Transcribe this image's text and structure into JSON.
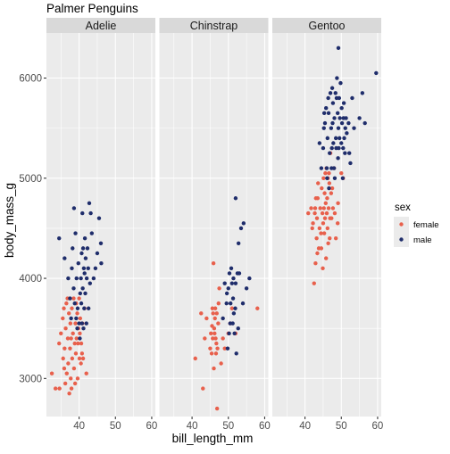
{
  "chart_data": {
    "type": "scatter",
    "title": "Palmer Penguins",
    "xlabel": "bill_length_mm",
    "ylabel": "body_mass_g",
    "xlim": [
      31,
      61
    ],
    "ylim": [
      2620,
      6450
    ],
    "x_ticks": [
      40,
      50,
      60
    ],
    "y_ticks": [
      3000,
      4000,
      5000,
      6000
    ],
    "legend": {
      "title": "sex",
      "position": "right",
      "entries": [
        {
          "name": "female",
          "color": "#E8604C"
        },
        {
          "name": "male",
          "color": "#1F2D6B"
        }
      ]
    },
    "facets": [
      {
        "name": "Adelie",
        "points": {
          "female": [
            [
              32.5,
              3050
            ],
            [
              33.5,
              2900
            ],
            [
              34.5,
              3350
            ],
            [
              34.6,
              2900
            ],
            [
              35,
              3450
            ],
            [
              35.5,
              3600
            ],
            [
              35.6,
              3200
            ],
            [
              35.8,
              3700
            ],
            [
              35.9,
              3100
            ],
            [
              36,
              3300
            ],
            [
              36.2,
              2950
            ],
            [
              36.3,
              3500
            ],
            [
              36.5,
              3750
            ],
            [
              36.6,
              3050
            ],
            [
              36.8,
              3800
            ],
            [
              36.9,
              3400
            ],
            [
              37,
              3150
            ],
            [
              37.2,
              3650
            ],
            [
              37.3,
              2850
            ],
            [
              37.5,
              3300
            ],
            [
              37.6,
              3550
            ],
            [
              37.7,
              3000
            ],
            [
              37.8,
              3400
            ],
            [
              37.9,
              2900
            ],
            [
              38,
              3700
            ],
            [
              38.1,
              3200
            ],
            [
              38.3,
              3450
            ],
            [
              38.5,
              3800
            ],
            [
              38.6,
              3100
            ],
            [
              38.8,
              3350
            ],
            [
              38.9,
              2950
            ],
            [
              39,
              3550
            ],
            [
              39.1,
              3250
            ],
            [
              39.2,
              3750
            ],
            [
              39.3,
              3400
            ],
            [
              39.5,
              3650
            ],
            [
              39.6,
              3000
            ],
            [
              39.7,
              3350
            ],
            [
              39.8,
              3500
            ],
            [
              40,
              3800
            ],
            [
              40.1,
              3200
            ],
            [
              40.2,
              3450
            ],
            [
              40.3,
              3600
            ],
            [
              40.5,
              3150
            ],
            [
              40.6,
              3350
            ],
            [
              40.8,
              3250
            ],
            [
              40.9,
              3550
            ],
            [
              41.1,
              3200
            ],
            [
              41.5,
              3700
            ],
            [
              42,
              3050
            ]
          ],
          "male": [
            [
              34.5,
              4400
            ],
            [
              36,
              4200
            ],
            [
              37,
              4000
            ],
            [
              37.5,
              3800
            ],
            [
              37.8,
              3600
            ],
            [
              38,
              4100
            ],
            [
              38.2,
              4300
            ],
            [
              38.5,
              3900
            ],
            [
              38.6,
              4700
            ],
            [
              38.8,
              3750
            ],
            [
              39,
              4450
            ],
            [
              39.2,
              3600
            ],
            [
              39.3,
              4000
            ],
            [
              39.5,
              3500
            ],
            [
              39.6,
              3700
            ],
            [
              39.8,
              4150
            ],
            [
              40,
              3550
            ],
            [
              40.2,
              3400
            ],
            [
              40.3,
              3850
            ],
            [
              40.5,
              4000
            ],
            [
              40.6,
              3750
            ],
            [
              40.7,
              4250
            ],
            [
              40.8,
              3550
            ],
            [
              40.9,
              4650
            ],
            [
              41,
              3900
            ],
            [
              41.1,
              4300
            ],
            [
              41.2,
              3500
            ],
            [
              41.3,
              4100
            ],
            [
              41.4,
              3700
            ],
            [
              41.5,
              4050
            ],
            [
              41.6,
              4400
            ],
            [
              41.7,
              3850
            ],
            [
              41.8,
              4200
            ],
            [
              42,
              3550
            ],
            [
              42.1,
              4000
            ],
            [
              42.3,
              4300
            ],
            [
              42.5,
              4100
            ],
            [
              42.6,
              3700
            ],
            [
              42.8,
              4750
            ],
            [
              43,
              3950
            ],
            [
              43.2,
              4650
            ],
            [
              43.5,
              4450
            ],
            [
              44,
              4000
            ],
            [
              44.5,
              4100
            ],
            [
              45,
              4250
            ],
            [
              45.5,
              4600
            ],
            [
              46,
              4350
            ],
            [
              46.1,
              4150
            ]
          ]
        }
      },
      {
        "name": "Chinstrap",
        "points": {
          "female": [
            [
              40.9,
              3200
            ],
            [
              42.5,
              3650
            ],
            [
              43,
              2900
            ],
            [
              43.5,
              3400
            ],
            [
              44,
              3600
            ],
            [
              45,
              3300
            ],
            [
              45.2,
              3450
            ],
            [
              45.4,
              3250
            ],
            [
              45.5,
              3525
            ],
            [
              45.6,
              3700
            ],
            [
              45.7,
              3400
            ],
            [
              45.8,
              3650
            ],
            [
              45.9,
              4150
            ],
            [
              46,
              3100
            ],
            [
              46.1,
              3500
            ],
            [
              46.2,
              3450
            ],
            [
              46.3,
              3600
            ],
            [
              46.4,
              3700
            ],
            [
              46.5,
              3400
            ],
            [
              46.6,
              3250
            ],
            [
              46.7,
              3350
            ],
            [
              46.8,
              3650
            ],
            [
              46.9,
              2700
            ],
            [
              47,
              3300
            ],
            [
              47.2,
              3550
            ],
            [
              47.3,
              3750
            ],
            [
              47.5,
              3900
            ],
            [
              48,
              3150
            ],
            [
              48.5,
              3400
            ],
            [
              49,
              3300
            ],
            [
              50,
              3450
            ],
            [
              50.5,
              3550
            ],
            [
              51,
              3700
            ],
            [
              52,
              3450
            ],
            [
              58,
              3700
            ]
          ],
          "male": [
            [
              48.5,
              3600
            ],
            [
              49,
              3950
            ],
            [
              49.5,
              3750
            ],
            [
              49.6,
              3850
            ],
            [
              49.8,
              3300
            ],
            [
              50,
              3900
            ],
            [
              50.2,
              3450
            ],
            [
              50.3,
              4050
            ],
            [
              50.5,
              3550
            ],
            [
              50.6,
              3750
            ],
            [
              50.8,
              4100
            ],
            [
              51,
              3950
            ],
            [
              51.2,
              3550
            ],
            [
              51.3,
              3800
            ],
            [
              51.4,
              4000
            ],
            [
              51.5,
              3650
            ],
            [
              51.7,
              3450
            ],
            [
              51.9,
              3700
            ],
            [
              52,
              3950
            ],
            [
              52.2,
              3250
            ],
            [
              52.5,
              4050
            ],
            [
              52.7,
              3500
            ],
            [
              52.8,
              4350
            ],
            [
              53,
              4050
            ],
            [
              53.5,
              4500
            ],
            [
              54,
              3750
            ],
            [
              54.2,
              4550
            ],
            [
              55,
              3900
            ],
            [
              55.8,
              4000
            ],
            [
              52,
              4800
            ]
          ]
        }
      },
      {
        "name": "Gentoo",
        "points": {
          "female": [
            [
              40.9,
              4650
            ],
            [
              41.7,
              4700
            ],
            [
              42,
              4500
            ],
            [
              42.2,
              4550
            ],
            [
              42.5,
              3950
            ],
            [
              42.7,
              4650
            ],
            [
              42.8,
              4700
            ],
            [
              42.9,
              4150
            ],
            [
              43,
              4800
            ],
            [
              43.2,
              4400
            ],
            [
              43.3,
              4600
            ],
            [
              43.4,
              4250
            ],
            [
              43.5,
              4800
            ],
            [
              43.6,
              4950
            ],
            [
              43.8,
              4300
            ],
            [
              44,
              4500
            ],
            [
              44.2,
              4700
            ],
            [
              44.4,
              4450
            ],
            [
              44.5,
              4300
            ],
            [
              44.6,
              4900
            ],
            [
              44.8,
              4650
            ],
            [
              44.9,
              4100
            ],
            [
              45,
              4550
            ],
            [
              45.1,
              5000
            ],
            [
              45.2,
              4700
            ],
            [
              45.3,
              4450
            ],
            [
              45.4,
              4850
            ],
            [
              45.5,
              4600
            ],
            [
              45.6,
              5050
            ],
            [
              45.7,
              4750
            ],
            [
              45.8,
              4200
            ],
            [
              45.9,
              5100
            ],
            [
              46,
              4650
            ],
            [
              46.1,
              4800
            ],
            [
              46.2,
              4500
            ],
            [
              46.3,
              5000
            ],
            [
              46.4,
              4350
            ],
            [
              46.5,
              4700
            ],
            [
              46.6,
              5050
            ],
            [
              46.7,
              4950
            ],
            [
              46.8,
              4400
            ],
            [
              46.9,
              4600
            ],
            [
              47,
              5250
            ],
            [
              47.2,
              4850
            ],
            [
              47.3,
              4600
            ],
            [
              47.5,
              4900
            ],
            [
              47.7,
              4700
            ],
            [
              48,
              5100
            ],
            [
              48.2,
              4650
            ],
            [
              48.5,
              4400
            ],
            [
              49,
              4550
            ],
            [
              49.1,
              4750
            ],
            [
              50,
              5050
            ],
            [
              50.5,
              5000
            ]
          ],
          "male": [
            [
              44,
              5350
            ],
            [
              44.5,
              5100
            ],
            [
              45,
              5300
            ],
            [
              45.2,
              5500
            ],
            [
              45.3,
              5650
            ],
            [
              45.5,
              5550
            ],
            [
              45.8,
              5700
            ],
            [
              46,
              5100
            ],
            [
              46.1,
              5000
            ],
            [
              46.2,
              5400
            ],
            [
              46.4,
              5800
            ],
            [
              46.5,
              5650
            ],
            [
              46.6,
              4900
            ],
            [
              46.8,
              5250
            ],
            [
              47,
              5850
            ],
            [
              47.2,
              5500
            ],
            [
              47.3,
              5100
            ],
            [
              47.4,
              5300
            ],
            [
              47.5,
              5900
            ],
            [
              47.6,
              5550
            ],
            [
              47.7,
              5750
            ],
            [
              47.8,
              5350
            ],
            [
              48,
              5100
            ],
            [
              48.1,
              5600
            ],
            [
              48.2,
              5000
            ],
            [
              48.4,
              5850
            ],
            [
              48.5,
              5400
            ],
            [
              48.6,
              5300
            ],
            [
              48.7,
              5800
            ],
            [
              48.8,
              6000
            ],
            [
              49,
              5650
            ],
            [
              49.1,
              5200
            ],
            [
              49.2,
              5500
            ],
            [
              49.3,
              5300
            ],
            [
              49.4,
              5800
            ],
            [
              49.5,
              5400
            ],
            [
              49.6,
              5600
            ],
            [
              49.8,
              5950
            ],
            [
              50,
              5350
            ],
            [
              50.1,
              5700
            ],
            [
              50.2,
              5550
            ],
            [
              50.4,
              5000
            ],
            [
              50.5,
              5300
            ],
            [
              50.6,
              5600
            ],
            [
              50.7,
              5750
            ],
            [
              50.8,
              5400
            ],
            [
              51,
              5250
            ],
            [
              51.1,
              5500
            ],
            [
              51.3,
              5600
            ],
            [
              51.5,
              5450
            ],
            [
              52,
              5550
            ],
            [
              52.2,
              5250
            ],
            [
              52.5,
              5150
            ],
            [
              53,
              5800
            ],
            [
              53.5,
              5500
            ],
            [
              55,
              5600
            ],
            [
              55.8,
              5850
            ],
            [
              56.5,
              5550
            ],
            [
              59.6,
              6050
            ],
            [
              49.2,
              6300
            ]
          ]
        }
      }
    ]
  }
}
